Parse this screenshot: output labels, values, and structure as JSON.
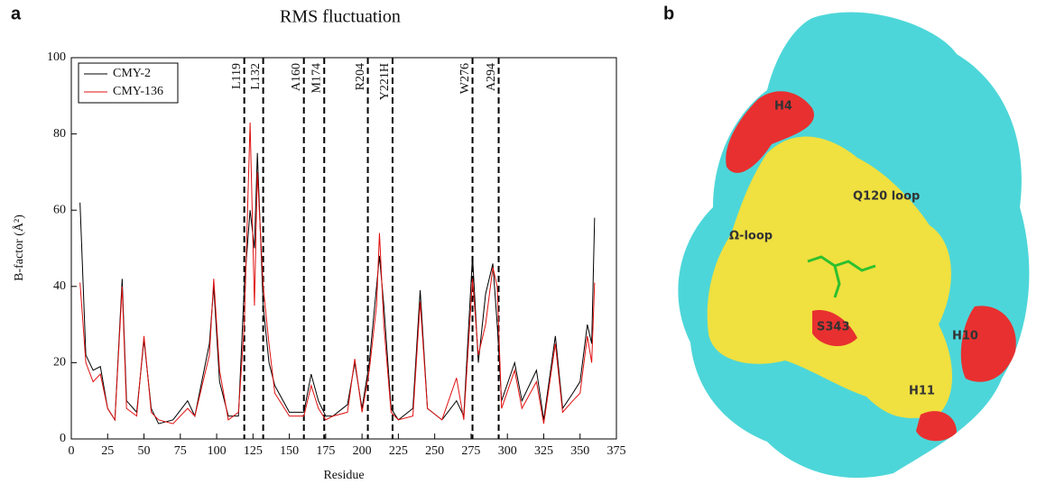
{
  "panel_labels": [
    "a",
    "b"
  ],
  "chart_data": {
    "type": "line",
    "title": "RMS fluctuation",
    "xlabel": "Residue",
    "ylabel": "B-factor (Å²)",
    "x": [
      6,
      10,
      15,
      20,
      25,
      30,
      35,
      38,
      45,
      50,
      55,
      60,
      70,
      80,
      85,
      95,
      98,
      102,
      108,
      115,
      119,
      123,
      126,
      128,
      132,
      136,
      140,
      150,
      160,
      165,
      170,
      175,
      180,
      190,
      195,
      200,
      205,
      210,
      212,
      215,
      220,
      225,
      235,
      240,
      245,
      255,
      265,
      270,
      276,
      280,
      285,
      290,
      293,
      296,
      305,
      310,
      320,
      325,
      333,
      338,
      345,
      350,
      355,
      358,
      360
    ],
    "series": [
      {
        "name": "CMY-2",
        "color": "#000000",
        "values": [
          62,
          22,
          18,
          19,
          8,
          5,
          42,
          10,
          7,
          26,
          8,
          4,
          5,
          10,
          6,
          25,
          40,
          15,
          6,
          6,
          40,
          60,
          50,
          75,
          35,
          20,
          14,
          7,
          7,
          17,
          10,
          6,
          6,
          9,
          20,
          8,
          20,
          40,
          48,
          35,
          8,
          5,
          8,
          39,
          8,
          5,
          10,
          6,
          48,
          20,
          38,
          46,
          30,
          10,
          20,
          10,
          18,
          5,
          27,
          8,
          12,
          15,
          30,
          25,
          58
        ]
      },
      {
        "name": "CMY-136",
        "color": "#e01010",
        "values": [
          41,
          20,
          15,
          17,
          8,
          5,
          40,
          8,
          6,
          27,
          7,
          5,
          4,
          8,
          6,
          22,
          42,
          18,
          5,
          7,
          30,
          83,
          35,
          70,
          40,
          25,
          12,
          6,
          6,
          14,
          8,
          5,
          6,
          7,
          21,
          7,
          18,
          35,
          54,
          30,
          7,
          5,
          6,
          36,
          8,
          5,
          16,
          5,
          42,
          22,
          30,
          45,
          40,
          8,
          18,
          8,
          15,
          4,
          25,
          7,
          10,
          12,
          27,
          20,
          41
        ]
      }
    ],
    "xlim": [
      0,
      375
    ],
    "ylim": [
      0,
      100
    ],
    "xticks": [
      0,
      25,
      50,
      75,
      100,
      125,
      150,
      175,
      200,
      225,
      250,
      275,
      300,
      325,
      350,
      375
    ],
    "yticks": [
      0,
      20,
      40,
      60,
      80,
      100
    ],
    "legend": "upper left",
    "markers": [
      {
        "value": 119,
        "label": "L119"
      },
      {
        "value": 132,
        "label": "L132"
      },
      {
        "value": 160,
        "label": "A160"
      },
      {
        "value": 174,
        "label": "M174"
      },
      {
        "value": 204,
        "label": "R204"
      },
      {
        "value": 221,
        "label": "Y221H"
      },
      {
        "value": 276,
        "label": "W276"
      },
      {
        "value": 294,
        "label": "A294"
      }
    ]
  },
  "structure_labels": [
    "H4",
    "Q120 loop",
    "Ω-loop",
    "S343",
    "H10",
    "H11"
  ]
}
